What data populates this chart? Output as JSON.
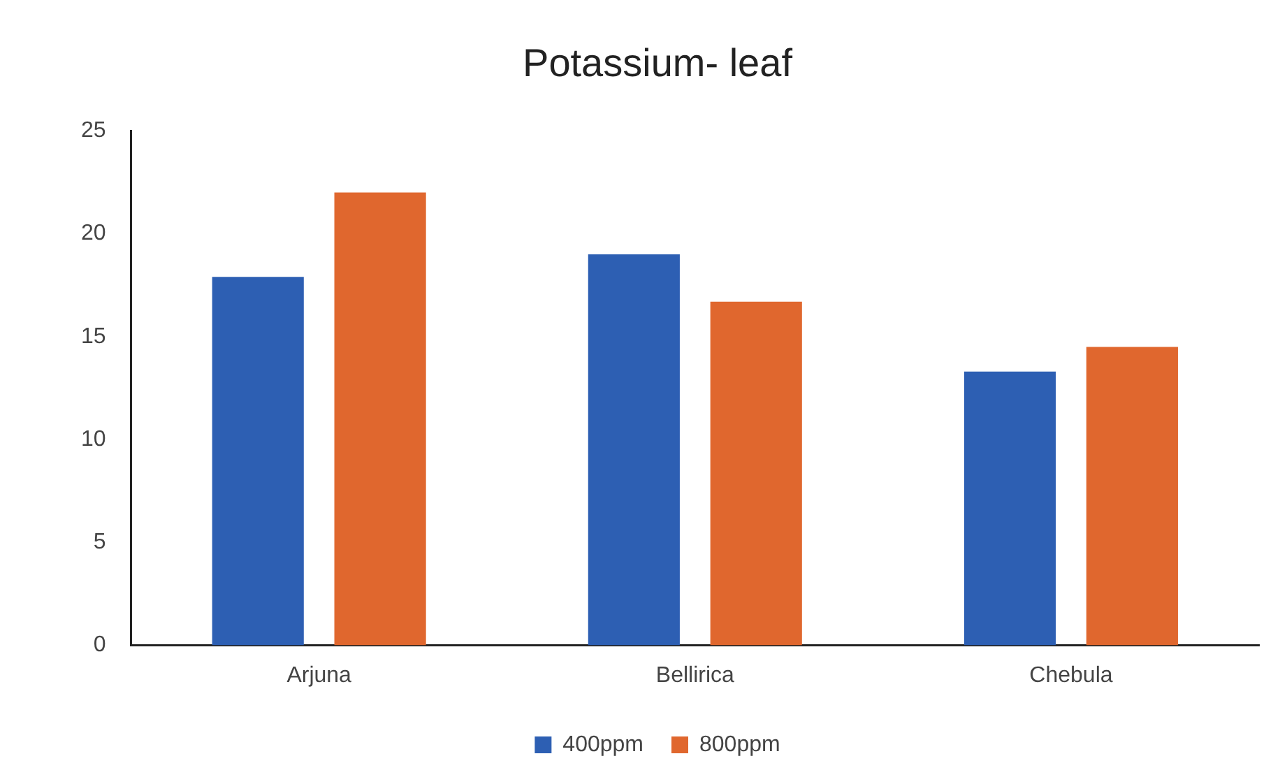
{
  "chart_data": {
    "type": "bar",
    "title": "Potassium- leaf",
    "categories": [
      "Arjuna",
      "Bellirica",
      "Chebula"
    ],
    "series": [
      {
        "name": "400ppm",
        "color": "#2d5fb3",
        "values": [
          17.9,
          19,
          13.3
        ]
      },
      {
        "name": "800ppm",
        "color": "#e0672e",
        "values": [
          22,
          16.7,
          14.5
        ]
      }
    ],
    "ylim": [
      0,
      25
    ],
    "yticks": [
      0,
      5,
      10,
      15,
      20,
      25
    ],
    "grid": false,
    "legend": "bottom"
  }
}
